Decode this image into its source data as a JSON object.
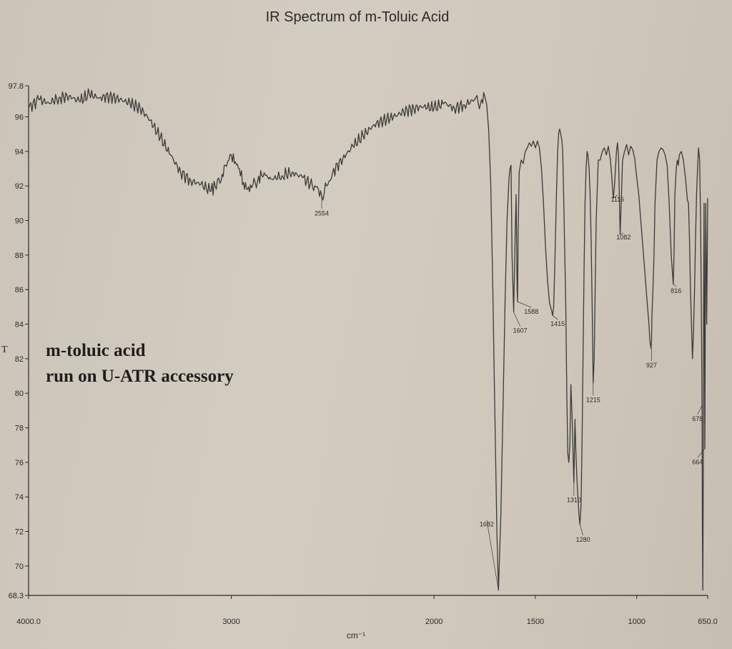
{
  "chart_data": {
    "type": "line",
    "title": "IR Spectrum of m-Toluic Acid",
    "xlabel": "cm⁻¹",
    "ylabel": "",
    "side_label": "T",
    "xlim": [
      4000,
      650
    ],
    "ylim": [
      68.3,
      97.8
    ],
    "x_ticks": [
      {
        "value": 4000,
        "label": "4000.0"
      },
      {
        "value": 3000,
        "label": "3000"
      },
      {
        "value": 2000,
        "label": "2000"
      },
      {
        "value": 1500,
        "label": "1500"
      },
      {
        "value": 1000,
        "label": "1000"
      },
      {
        "value": 650,
        "label": "650.0"
      }
    ],
    "y_ticks": [
      {
        "value": 97.8,
        "label": "97.8"
      },
      {
        "value": 96,
        "label": "96"
      },
      {
        "value": 94,
        "label": "94"
      },
      {
        "value": 92,
        "label": "92"
      },
      {
        "value": 90,
        "label": "90"
      },
      {
        "value": 88,
        "label": "88"
      },
      {
        "value": 86,
        "label": "86"
      },
      {
        "value": 84,
        "label": "84"
      },
      {
        "value": 82,
        "label": "82"
      },
      {
        "value": 80,
        "label": "80"
      },
      {
        "value": 78,
        "label": "78"
      },
      {
        "value": 76,
        "label": "76"
      },
      {
        "value": 74,
        "label": "74"
      },
      {
        "value": 72,
        "label": "72"
      },
      {
        "value": 70,
        "label": "70"
      },
      {
        "value": 68.3,
        "label": "68.3"
      }
    ],
    "annotation_lines": [
      "m-toluic acid",
      "run on U-ATR accessory"
    ],
    "peak_labels": [
      {
        "x": 2554,
        "y": 91.4,
        "label": "2554",
        "text_x": 2554,
        "text_y": 90.3
      },
      {
        "x": 1682,
        "y": 68.6,
        "label": "1682",
        "text_x": 1740,
        "text_y": 72.3
      },
      {
        "x": 1607,
        "y": 84.7,
        "label": "1607",
        "text_x": 1575,
        "text_y": 83.5
      },
      {
        "x": 1588,
        "y": 85.3,
        "label": "1588",
        "text_x": 1520,
        "text_y": 84.6
      },
      {
        "x": 1415,
        "y": 84.5,
        "label": "1415",
        "text_x": 1390,
        "text_y": 83.9
      },
      {
        "x": 1310,
        "y": 74.8,
        "label": "1310",
        "text_x": 1310,
        "text_y": 73.7
      },
      {
        "x": 1280,
        "y": 72.4,
        "label": "1280",
        "text_x": 1265,
        "text_y": 71.4
      },
      {
        "x": 1215,
        "y": 80.6,
        "label": "1215",
        "text_x": 1215,
        "text_y": 79.5
      },
      {
        "x": 1116,
        "y": 91.3,
        "label": "1116",
        "text_x": 1095,
        "text_y": 91.1
      },
      {
        "x": 1082,
        "y": 89.2,
        "label": "1082",
        "text_x": 1065,
        "text_y": 88.9
      },
      {
        "x": 927,
        "y": 82.6,
        "label": "927",
        "text_x": 927,
        "text_y": 81.5
      },
      {
        "x": 816,
        "y": 86.3,
        "label": "816",
        "text_x": 806,
        "text_y": 85.8
      },
      {
        "x": 678,
        "y": 79.3,
        "label": "678",
        "text_x": 700,
        "text_y": 78.4
      },
      {
        "x": 664,
        "y": 76.8,
        "label": "664",
        "text_x": 700,
        "text_y": 75.9
      }
    ],
    "series": [
      {
        "line_color": "#3a3a3a",
        "x": [
          4000,
          3950,
          3900,
          3850,
          3800,
          3750,
          3700,
          3650,
          3600,
          3550,
          3500,
          3450,
          3400,
          3350,
          3300,
          3250,
          3200,
          3150,
          3100,
          3080,
          3050,
          3030,
          3000,
          2980,
          2960,
          2940,
          2920,
          2900,
          2870,
          2850,
          2820,
          2800,
          2750,
          2700,
          2650,
          2600,
          2570,
          2554,
          2530,
          2500,
          2450,
          2400,
          2350,
          2300,
          2250,
          2200,
          2150,
          2100,
          2050,
          2000,
          1950,
          1900,
          1850,
          1800,
          1770,
          1750,
          1740,
          1730,
          1720,
          1710,
          1700,
          1690,
          1682,
          1670,
          1660,
          1650,
          1640,
          1630,
          1625,
          1620,
          1615,
          1607,
          1600,
          1595,
          1590,
          1588,
          1585,
          1580,
          1570,
          1560,
          1550,
          1540,
          1530,
          1520,
          1510,
          1500,
          1490,
          1480,
          1470,
          1460,
          1450,
          1440,
          1430,
          1420,
          1415,
          1410,
          1405,
          1400,
          1395,
          1390,
          1385,
          1380,
          1370,
          1365,
          1360,
          1350,
          1345,
          1340,
          1335,
          1330,
          1325,
          1320,
          1315,
          1310,
          1305,
          1300,
          1295,
          1290,
          1285,
          1280,
          1275,
          1270,
          1265,
          1260,
          1255,
          1250,
          1245,
          1240,
          1235,
          1230,
          1225,
          1220,
          1215,
          1210,
          1205,
          1200,
          1190,
          1180,
          1170,
          1160,
          1150,
          1140,
          1130,
          1125,
          1120,
          1116,
          1110,
          1105,
          1100,
          1095,
          1090,
          1085,
          1082,
          1078,
          1070,
          1060,
          1050,
          1040,
          1030,
          1020,
          1010,
          1000,
          990,
          980,
          970,
          960,
          950,
          940,
          935,
          930,
          927,
          925,
          920,
          915,
          910,
          900,
          890,
          880,
          870,
          860,
          850,
          840,
          830,
          820,
          816,
          812,
          805,
          800,
          795,
          790,
          780,
          770,
          760,
          750,
          745,
          740,
          735,
          730,
          725,
          720,
          715,
          710,
          705,
          700,
          695,
          690,
          685,
          680,
          678,
          676,
          674,
          672,
          670,
          668,
          666,
          664,
          662,
          660,
          658,
          655,
          652,
          650
        ],
        "y": [
          96.5,
          97.0,
          96.8,
          97.1,
          97.2,
          96.9,
          97.3,
          97.1,
          97.2,
          97.0,
          96.8,
          96.5,
          95.8,
          94.8,
          93.8,
          92.8,
          92.3,
          92.1,
          91.7,
          92.0,
          92.3,
          93.2,
          93.8,
          93.4,
          93.0,
          92.2,
          91.8,
          91.9,
          92.3,
          92.6,
          92.5,
          92.4,
          92.6,
          92.8,
          92.5,
          92.0,
          91.8,
          91.4,
          92.0,
          92.8,
          93.6,
          94.3,
          94.9,
          95.5,
          95.8,
          96.0,
          96.3,
          96.5,
          96.6,
          96.5,
          96.8,
          96.5,
          96.7,
          97.0,
          96.8,
          97.2,
          96.7,
          95.2,
          92.0,
          86.0,
          79.0,
          72.0,
          68.6,
          73.0,
          79.0,
          85.0,
          90.0,
          92.5,
          93.0,
          93.2,
          88.0,
          84.7,
          89.0,
          91.5,
          86.0,
          85.3,
          89.5,
          92.8,
          93.5,
          93.3,
          94.0,
          94.2,
          94.5,
          94.3,
          94.6,
          94.2,
          94.6,
          94.2,
          93.0,
          91.0,
          88.5,
          86.5,
          85.2,
          84.8,
          84.5,
          85.0,
          87.0,
          89.5,
          92.0,
          94.0,
          95.1,
          95.3,
          94.7,
          94.0,
          91.0,
          85.0,
          80.0,
          76.5,
          76.0,
          77.0,
          80.5,
          79.0,
          77.0,
          74.8,
          78.5,
          76.5,
          75.0,
          74.0,
          73.0,
          72.4,
          73.5,
          77.0,
          82.0,
          87.0,
          91.0,
          93.0,
          94.0,
          93.7,
          93.0,
          91.5,
          89.0,
          85.0,
          80.6,
          82.0,
          86.0,
          90.0,
          93.5,
          93.5,
          94.0,
          94.2,
          93.8,
          94.3,
          93.5,
          92.8,
          92.0,
          91.3,
          92.0,
          93.0,
          94.0,
          94.5,
          93.8,
          91.0,
          89.2,
          90.5,
          93.5,
          94.0,
          94.4,
          93.8,
          94.3,
          94.1,
          93.6,
          92.5,
          91.5,
          90.0,
          88.5,
          87.0,
          85.5,
          84.0,
          83.0,
          82.6,
          83.0,
          84.5,
          86.0,
          88.0,
          91.0,
          93.5,
          94.0,
          94.2,
          94.1,
          93.8,
          93.2,
          91.0,
          88.0,
          86.3,
          88.0,
          91.5,
          93.0,
          93.5,
          93.2,
          93.8,
          94.0,
          93.5,
          92.5,
          91.2,
          91.0,
          89.0,
          86.0,
          84.0,
          82.0,
          83.5,
          86.0,
          89.0,
          91.5,
          93.0,
          94.2,
          93.5,
          90.0,
          83.0,
          79.3,
          72.0,
          68.6,
          75.0,
          85.0,
          91.0,
          84.0,
          76.8,
          84.0,
          91.0,
          89.0,
          84.0,
          88.0,
          91.3
        ]
      }
    ],
    "grid": false,
    "legend": "none"
  }
}
